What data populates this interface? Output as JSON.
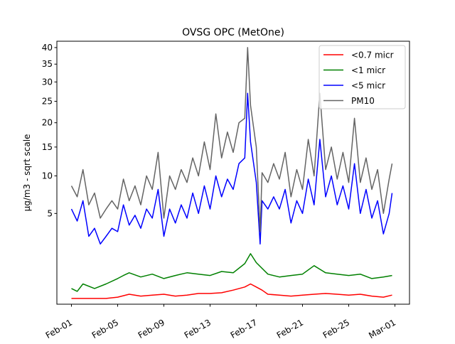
{
  "chart_data": {
    "type": "line",
    "title": "OVSG OPC (MetOne)",
    "xlabel": "",
    "ylabel": "µg/m3 - sqrt scale",
    "y_scale": "sqrt",
    "ylim": [
      0,
      42
    ],
    "y_ticks": [
      5,
      10,
      15,
      20,
      25,
      30,
      35,
      40
    ],
    "x_range": [
      "2026-02-01",
      "2026-03-01"
    ],
    "x_ticks": [
      {
        "date": "2026-02-01",
        "label": "Feb-01"
      },
      {
        "date": "2026-02-05",
        "label": "Feb-05"
      },
      {
        "date": "2026-02-09",
        "label": "Feb-09"
      },
      {
        "date": "2026-02-13",
        "label": "Feb-13"
      },
      {
        "date": "2026-02-17",
        "label": "Feb-17"
      },
      {
        "date": "2026-02-21",
        "label": "Feb-21"
      },
      {
        "date": "2026-02-25",
        "label": "Feb-25"
      },
      {
        "date": "2026-03-01",
        "label": "Mar-01"
      }
    ],
    "legend_position": "top-right",
    "grid": false,
    "series": [
      {
        "name": "<0.7 micr",
        "color": "#ff0000",
        "x": [
          "2026-02-01T00:00",
          "2026-02-02T00:00",
          "2026-02-03T00:00",
          "2026-02-04T00:00",
          "2026-02-05T00:00",
          "2026-02-06T00:00",
          "2026-02-07T00:00",
          "2026-02-08T00:00",
          "2026-02-09T00:00",
          "2026-02-10T00:00",
          "2026-02-11T00:00",
          "2026-02-12T00:00",
          "2026-02-13T00:00",
          "2026-02-14T00:00",
          "2026-02-15T00:00",
          "2026-02-16T00:00",
          "2026-02-16T12:00",
          "2026-02-17T00:00",
          "2026-02-17T12:00",
          "2026-02-18T00:00",
          "2026-02-19T00:00",
          "2026-02-20T00:00",
          "2026-02-21T00:00",
          "2026-02-22T00:00",
          "2026-02-23T00:00",
          "2026-02-24T00:00",
          "2026-02-25T00:00",
          "2026-02-26T00:00",
          "2026-02-27T00:00",
          "2026-02-28T00:00",
          "2026-02-28T18:00"
        ],
        "values": [
          0.02,
          0.02,
          0.02,
          0.02,
          0.03,
          0.06,
          0.04,
          0.05,
          0.06,
          0.04,
          0.05,
          0.07,
          0.07,
          0.08,
          0.12,
          0.18,
          0.25,
          0.18,
          0.12,
          0.06,
          0.05,
          0.04,
          0.05,
          0.06,
          0.07,
          0.06,
          0.05,
          0.06,
          0.04,
          0.03,
          0.05
        ]
      },
      {
        "name": "<1 micr",
        "color": "#008000",
        "x": [
          "2026-02-01T00:00",
          "2026-02-01T12:00",
          "2026-02-02T00:00",
          "2026-02-03T00:00",
          "2026-02-04T00:00",
          "2026-02-05T00:00",
          "2026-02-05T12:00",
          "2026-02-06T00:00",
          "2026-02-07T00:00",
          "2026-02-08T00:00",
          "2026-02-09T00:00",
          "2026-02-10T00:00",
          "2026-02-11T00:00",
          "2026-02-12T00:00",
          "2026-02-13T00:00",
          "2026-02-14T00:00",
          "2026-02-15T00:00",
          "2026-02-16T00:00",
          "2026-02-16T12:00",
          "2026-02-17T00:00",
          "2026-02-18T00:00",
          "2026-02-19T00:00",
          "2026-02-20T00:00",
          "2026-02-21T00:00",
          "2026-02-22T00:00",
          "2026-02-23T00:00",
          "2026-02-24T00:00",
          "2026-02-25T00:00",
          "2026-02-26T00:00",
          "2026-02-27T00:00",
          "2026-02-28T00:00",
          "2026-02-28T18:00"
        ],
        "values": [
          0.15,
          0.1,
          0.25,
          0.15,
          0.25,
          0.4,
          0.5,
          0.6,
          0.45,
          0.55,
          0.4,
          0.5,
          0.6,
          0.55,
          0.5,
          0.65,
          0.6,
          1.0,
          1.55,
          1.05,
          0.55,
          0.45,
          0.5,
          0.55,
          0.9,
          0.6,
          0.55,
          0.5,
          0.55,
          0.4,
          0.45,
          0.5
        ]
      },
      {
        "name": "<5 micr",
        "color": "#0000ff",
        "x": [
          "2026-02-01T00:00",
          "2026-02-01T12:00",
          "2026-02-02T00:00",
          "2026-02-02T12:00",
          "2026-02-03T00:00",
          "2026-02-03T12:00",
          "2026-02-04T00:00",
          "2026-02-04T12:00",
          "2026-02-05T00:00",
          "2026-02-05T12:00",
          "2026-02-06T00:00",
          "2026-02-06T12:00",
          "2026-02-07T00:00",
          "2026-02-07T12:00",
          "2026-02-08T00:00",
          "2026-02-08T12:00",
          "2026-02-09T00:00",
          "2026-02-09T12:00",
          "2026-02-10T00:00",
          "2026-02-10T12:00",
          "2026-02-11T00:00",
          "2026-02-11T12:00",
          "2026-02-12T00:00",
          "2026-02-12T12:00",
          "2026-02-13T00:00",
          "2026-02-13T12:00",
          "2026-02-14T00:00",
          "2026-02-14T12:00",
          "2026-02-15T00:00",
          "2026-02-15T12:00",
          "2026-02-16T00:00",
          "2026-02-16T06:00",
          "2026-02-16T12:00",
          "2026-02-17T00:00",
          "2026-02-17T08:00",
          "2026-02-17T12:00",
          "2026-02-18T00:00",
          "2026-02-18T12:00",
          "2026-02-19T00:00",
          "2026-02-19T12:00",
          "2026-02-20T00:00",
          "2026-02-20T12:00",
          "2026-02-21T00:00",
          "2026-02-21T12:00",
          "2026-02-22T00:00",
          "2026-02-22T12:00",
          "2026-02-23T00:00",
          "2026-02-23T12:00",
          "2026-02-24T00:00",
          "2026-02-24T12:00",
          "2026-02-25T00:00",
          "2026-02-25T12:00",
          "2026-02-26T00:00",
          "2026-02-26T12:00",
          "2026-02-27T00:00",
          "2026-02-27T12:00",
          "2026-02-28T00:00",
          "2026-02-28T12:00",
          "2026-02-28T18:00"
        ],
        "values": [
          5.5,
          4.2,
          6.5,
          2.8,
          3.5,
          2.2,
          2.8,
          3.5,
          3.2,
          6.0,
          3.8,
          4.8,
          3.5,
          5.5,
          4.5,
          8.0,
          2.8,
          5.5,
          4.0,
          6.0,
          4.5,
          7.5,
          5.0,
          8.5,
          5.5,
          10.0,
          7.0,
          9.5,
          8.0,
          12.0,
          13.0,
          27.0,
          16.0,
          9.0,
          2.2,
          6.5,
          5.5,
          7.0,
          5.5,
          8.0,
          4.0,
          6.5,
          5.0,
          9.5,
          6.0,
          16.5,
          7.0,
          10.0,
          6.0,
          8.5,
          5.5,
          12.0,
          5.0,
          8.0,
          4.5,
          6.5,
          3.0,
          5.0,
          7.5
        ]
      },
      {
        "name": "PM10",
        "color": "#646464",
        "x": [
          "2026-02-01T00:00",
          "2026-02-01T12:00",
          "2026-02-02T00:00",
          "2026-02-02T12:00",
          "2026-02-03T00:00",
          "2026-02-03T12:00",
          "2026-02-04T00:00",
          "2026-02-04T12:00",
          "2026-02-05T00:00",
          "2026-02-05T12:00",
          "2026-02-06T00:00",
          "2026-02-06T12:00",
          "2026-02-07T00:00",
          "2026-02-07T12:00",
          "2026-02-08T00:00",
          "2026-02-08T12:00",
          "2026-02-09T00:00",
          "2026-02-09T12:00",
          "2026-02-10T00:00",
          "2026-02-10T12:00",
          "2026-02-11T00:00",
          "2026-02-11T12:00",
          "2026-02-12T00:00",
          "2026-02-12T12:00",
          "2026-02-13T00:00",
          "2026-02-13T12:00",
          "2026-02-14T00:00",
          "2026-02-14T12:00",
          "2026-02-15T00:00",
          "2026-02-15T12:00",
          "2026-02-16T00:00",
          "2026-02-16T06:00",
          "2026-02-16T12:00",
          "2026-02-17T00:00",
          "2026-02-17T08:00",
          "2026-02-17T12:00",
          "2026-02-18T00:00",
          "2026-02-18T12:00",
          "2026-02-19T00:00",
          "2026-02-19T12:00",
          "2026-02-20T00:00",
          "2026-02-20T12:00",
          "2026-02-21T00:00",
          "2026-02-21T12:00",
          "2026-02-22T00:00",
          "2026-02-22T12:00",
          "2026-02-23T00:00",
          "2026-02-23T12:00",
          "2026-02-24T00:00",
          "2026-02-24T12:00",
          "2026-02-25T00:00",
          "2026-02-25T12:00",
          "2026-02-26T00:00",
          "2026-02-26T12:00",
          "2026-02-27T00:00",
          "2026-02-27T12:00",
          "2026-02-28T00:00",
          "2026-02-28T12:00",
          "2026-02-28T18:00"
        ],
        "values": [
          8.5,
          7.0,
          11.0,
          6.0,
          7.5,
          4.5,
          5.5,
          6.5,
          5.5,
          9.5,
          6.5,
          8.5,
          6.0,
          10.0,
          8.0,
          14.0,
          4.5,
          10.0,
          8.0,
          11.0,
          9.0,
          13.0,
          10.0,
          16.0,
          11.0,
          22.0,
          13.0,
          18.0,
          14.0,
          20.0,
          21.0,
          40.0,
          24.0,
          15.0,
          3.2,
          10.5,
          9.0,
          12.0,
          9.5,
          14.0,
          7.0,
          11.0,
          8.0,
          16.5,
          10.0,
          27.0,
          11.0,
          15.0,
          9.5,
          14.0,
          9.0,
          21.0,
          9.0,
          13.0,
          8.0,
          11.0,
          5.0,
          9.5,
          12.0
        ]
      }
    ]
  }
}
